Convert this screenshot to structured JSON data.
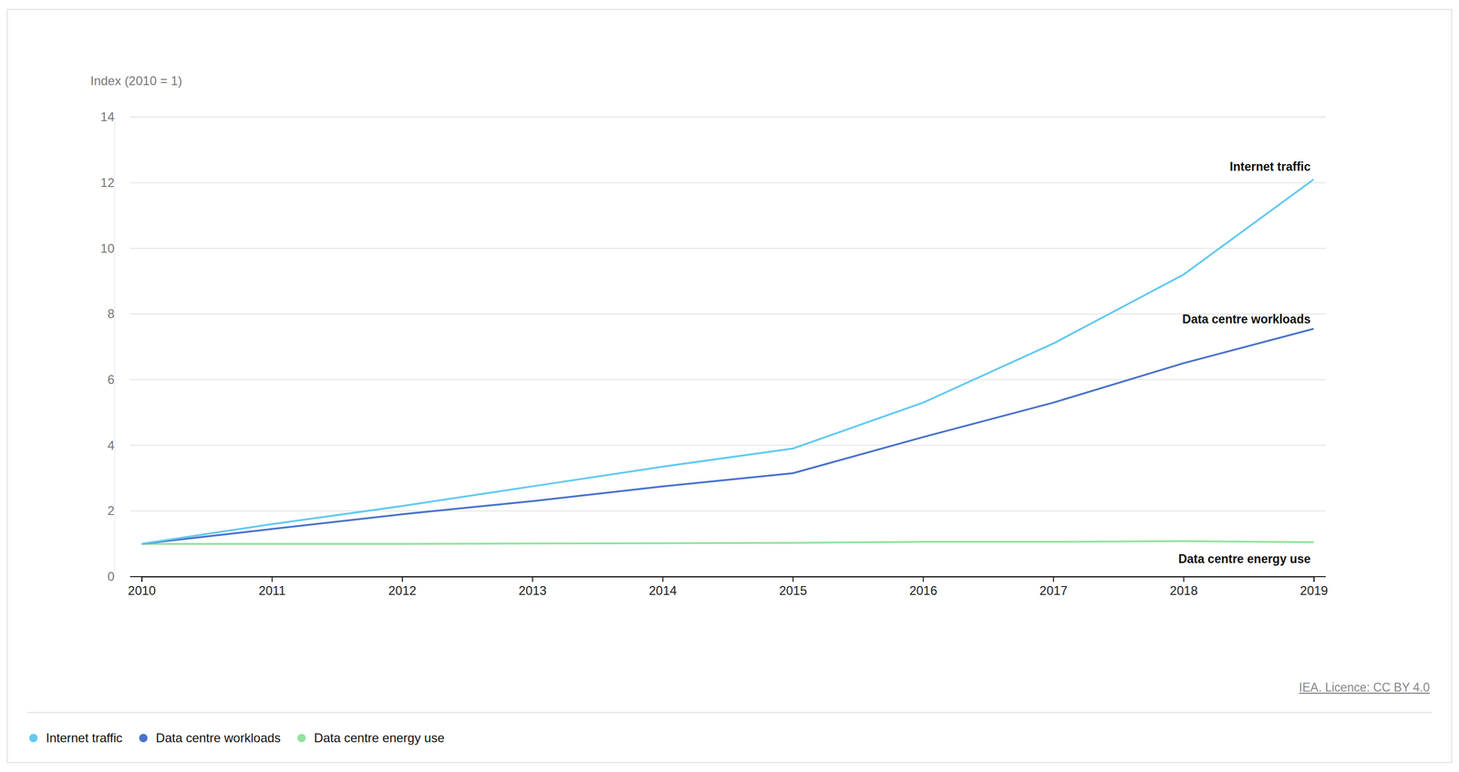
{
  "chart_data": {
    "type": "line",
    "y_label": "Index (2010 = 1)",
    "source": "IEA. Licence: CC BY 4.0",
    "x": [
      2010,
      2011,
      2012,
      2013,
      2014,
      2015,
      2016,
      2017,
      2018,
      2019
    ],
    "xlim": [
      2010,
      2019
    ],
    "xticks": [
      2010,
      2011,
      2012,
      2013,
      2014,
      2015,
      2016,
      2017,
      2018,
      2019
    ],
    "ylim": [
      0,
      14
    ],
    "yticks": [
      0,
      2,
      4,
      6,
      8,
      10,
      12,
      14
    ],
    "grid": true,
    "legend": "bottom",
    "series": [
      {
        "name": "Internet traffic",
        "color": "#62c9f2",
        "values": [
          1,
          1.6,
          2.15,
          2.75,
          3.35,
          3.9,
          5.3,
          7.1,
          9.2,
          12.1
        ]
      },
      {
        "name": "Data centre workloads",
        "color": "#4a72cc",
        "values": [
          1,
          1.45,
          1.9,
          2.3,
          2.75,
          3.15,
          4.25,
          5.3,
          6.5,
          7.55
        ]
      },
      {
        "name": "Data centre energy use",
        "color": "#8fe39c",
        "values": [
          1,
          1.0,
          1.0,
          1.01,
          1.02,
          1.03,
          1.06,
          1.06,
          1.08,
          1.05
        ]
      }
    ]
  }
}
